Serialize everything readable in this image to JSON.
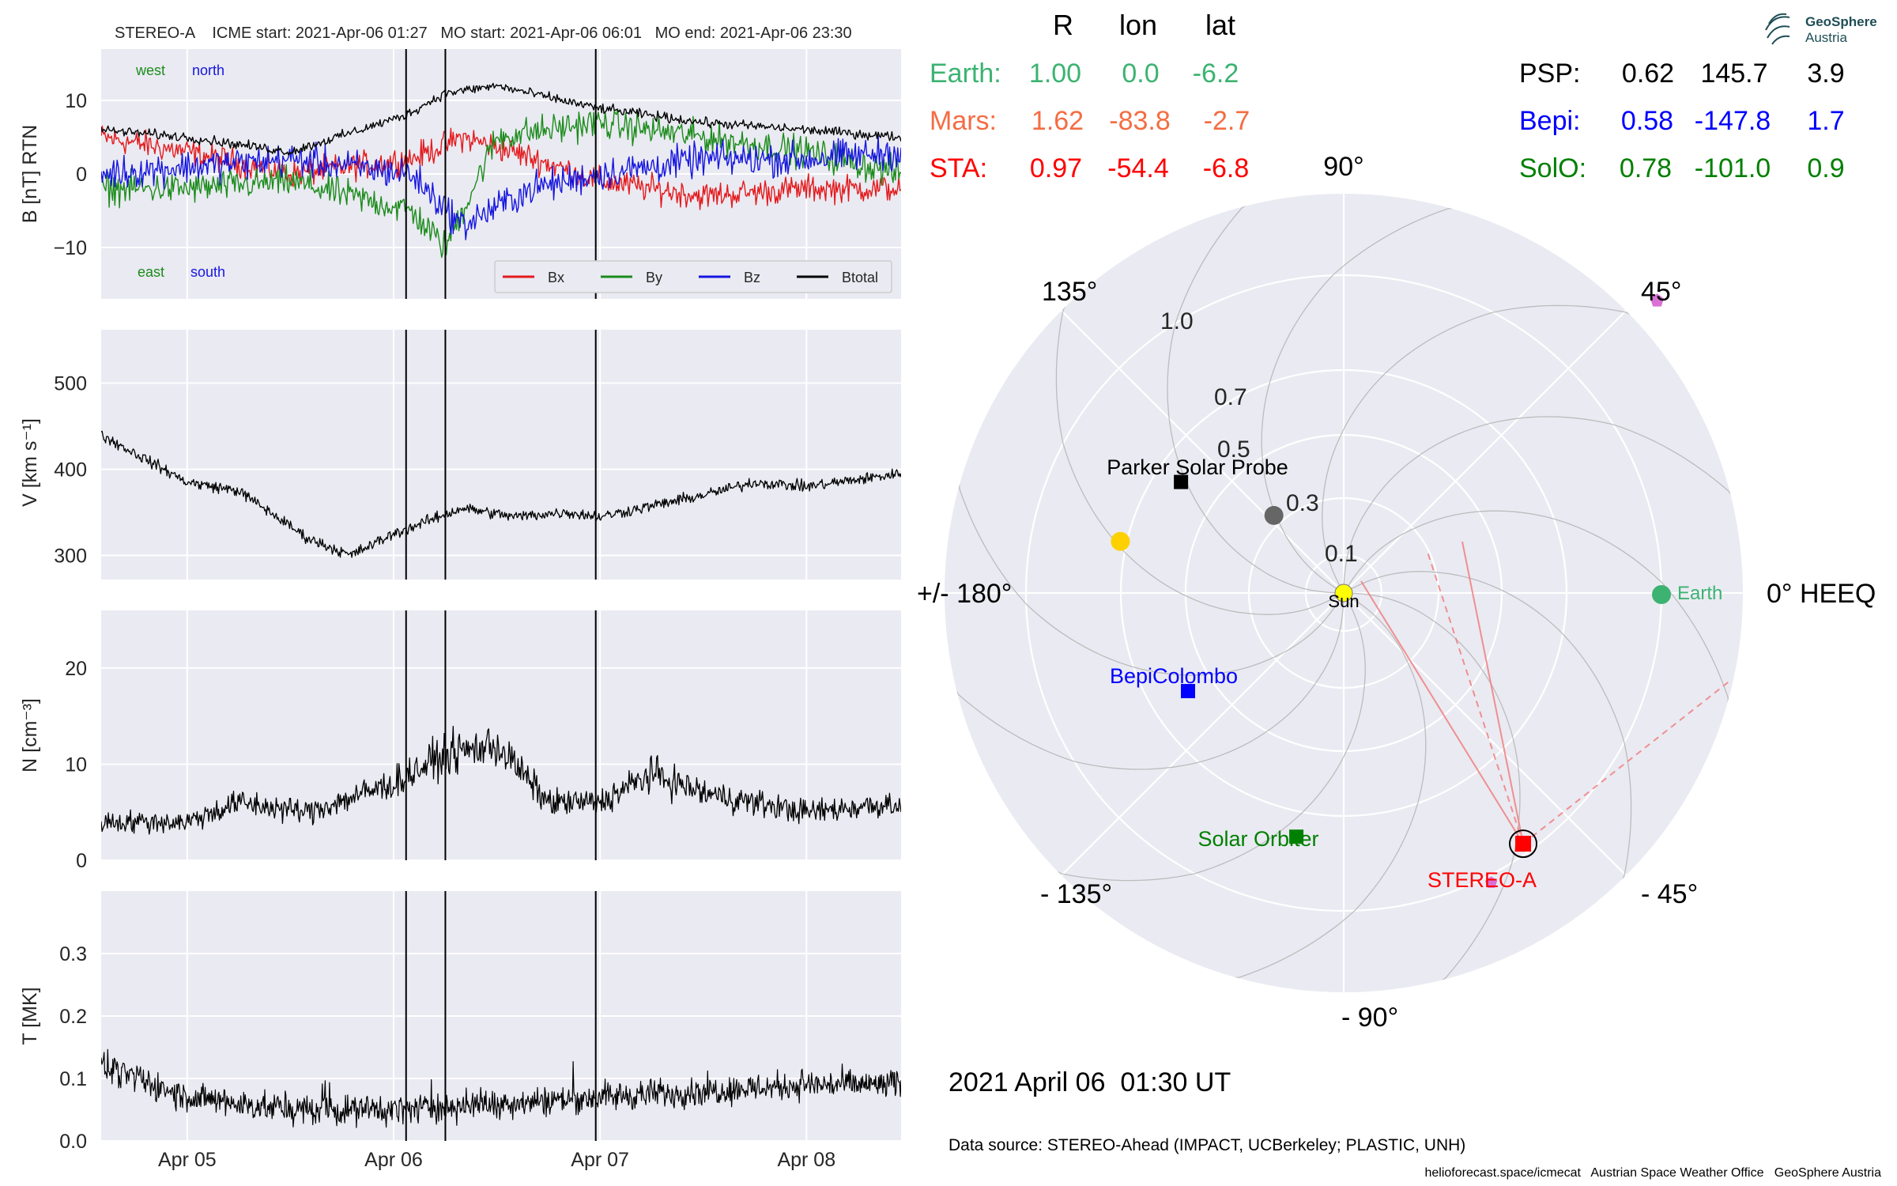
{
  "header": {
    "title": "STEREO-A    ICME start: 2021-Apr-06 01:27   MO start: 2021-Apr-06 06:01   MO end: 2021-Apr-06 23:30"
  },
  "panel_b": {
    "ylabel": "B [nT] RTN",
    "dir_west": "west",
    "dir_north": "north",
    "dir_east": "east",
    "dir_south": "south",
    "legend": [
      "Bx",
      "By",
      "Bz",
      "Btotal"
    ]
  },
  "panel_v": {
    "ylabel": "V [km s⁻¹]"
  },
  "panel_n": {
    "ylabel": "N [cm⁻³]"
  },
  "panel_t": {
    "ylabel": "T [MK]"
  },
  "colors": {
    "bx": "#e41a1c",
    "by": "#1b8c1b",
    "bz": "#1515e0",
    "btot": "#000000",
    "earth": "#3cb371",
    "mars": "#f46d43",
    "sta": "#ff0000",
    "psp": "#000000",
    "bepi": "#0000ff",
    "solo": "#008000",
    "mercury": "#666666",
    "venus": "#ffd000"
  },
  "chart_data": [
    {
      "type": "line",
      "title": "B [nT] RTN",
      "ylabel": "B [nT] RTN",
      "ylim": [
        -17,
        17
      ],
      "yticks": [
        "10",
        "0",
        "−10"
      ],
      "xlim": [
        "2021-04-04 14:00",
        "2021-04-08 11:00"
      ],
      "xticks": [
        "Apr 05",
        "Apr 06",
        "Apr 07",
        "Apr 08"
      ],
      "series": [
        {
          "name": "Bx",
          "points": [
            [
              "2021-04-04 14:00",
              5
            ],
            [
              "2021-04-05 00:00",
              3
            ],
            [
              "2021-04-05 12:00",
              0
            ],
            [
              "2021-04-06 02:00",
              2
            ],
            [
              "2021-04-06 08:00",
              5
            ],
            [
              "2021-04-06 14:00",
              3
            ],
            [
              "2021-04-07 00:00",
              -1
            ],
            [
              "2021-04-07 12:00",
              -3
            ],
            [
              "2021-04-08 00:00",
              -2
            ],
            [
              "2021-04-08 11:00",
              -2
            ]
          ]
        },
        {
          "name": "By",
          "points": [
            [
              "2021-04-04 14:00",
              -2
            ],
            [
              "2021-04-05 00:00",
              -2
            ],
            [
              "2021-04-05 12:00",
              -1
            ],
            [
              "2021-04-06 02:00",
              -5
            ],
            [
              "2021-04-06 06:00",
              -10
            ],
            [
              "2021-04-06 12:00",
              5
            ],
            [
              "2021-04-06 23:30",
              7
            ],
            [
              "2021-04-07 12:00",
              5
            ],
            [
              "2021-04-08 00:00",
              3
            ],
            [
              "2021-04-08 11:00",
              0
            ]
          ]
        },
        {
          "name": "Bz",
          "points": [
            [
              "2021-04-04 14:00",
              0
            ],
            [
              "2021-04-05 00:00",
              1
            ],
            [
              "2021-04-05 12:00",
              2
            ],
            [
              "2021-04-06 02:00",
              0
            ],
            [
              "2021-04-06 08:00",
              -7
            ],
            [
              "2021-04-06 16:00",
              -2
            ],
            [
              "2021-04-07 00:00",
              0
            ],
            [
              "2021-04-07 12:00",
              2
            ],
            [
              "2021-04-08 00:00",
              2
            ],
            [
              "2021-04-08 11:00",
              3
            ]
          ]
        },
        {
          "name": "Btotal",
          "points": [
            [
              "2021-04-04 14:00",
              6
            ],
            [
              "2021-04-05 00:00",
              5
            ],
            [
              "2021-04-05 12:00",
              3
            ],
            [
              "2021-04-06 01:27",
              8
            ],
            [
              "2021-04-06 06:00",
              11
            ],
            [
              "2021-04-06 12:00",
              12
            ],
            [
              "2021-04-06 23:30",
              9
            ],
            [
              "2021-04-07 12:00",
              7
            ],
            [
              "2021-04-08 00:00",
              6
            ],
            [
              "2021-04-08 11:00",
              5
            ]
          ]
        }
      ],
      "vlines": [
        "2021-04-06 01:27",
        "2021-04-06 06:01",
        "2021-04-06 23:30"
      ]
    },
    {
      "type": "line",
      "ylabel": "V [km s⁻¹]",
      "ylim": [
        272,
        562
      ],
      "yticks": [
        "500",
        "400",
        "300"
      ],
      "xlim": [
        "2021-04-04 14:00",
        "2021-04-08 11:00"
      ],
      "series": [
        {
          "points": [
            [
              "2021-04-04 14:00",
              440
            ],
            [
              "2021-04-05 00:00",
              385
            ],
            [
              "2021-04-05 06:00",
              375
            ],
            [
              "2021-04-05 14:00",
              320
            ],
            [
              "2021-04-05 19:00",
              300
            ],
            [
              "2021-04-06 00:00",
              325
            ],
            [
              "2021-04-06 08:00",
              355
            ],
            [
              "2021-04-06 14:00",
              345
            ],
            [
              "2021-04-06 20:00",
              350
            ],
            [
              "2021-04-07 00:00",
              345
            ],
            [
              "2021-04-07 12:00",
              370
            ],
            [
              "2021-04-07 18:00",
              385
            ],
            [
              "2021-04-08 00:00",
              380
            ],
            [
              "2021-04-08 11:00",
              395
            ]
          ]
        }
      ]
    },
    {
      "type": "line",
      "ylabel": "N [cm⁻³]",
      "ylim": [
        0,
        26
      ],
      "yticks": [
        "20",
        "10",
        "0"
      ],
      "xlim": [
        "2021-04-04 14:00",
        "2021-04-08 11:00"
      ],
      "series": [
        {
          "points": [
            [
              "2021-04-04 14:00",
              4
            ],
            [
              "2021-04-05 00:00",
              4
            ],
            [
              "2021-04-05 06:00",
              6
            ],
            [
              "2021-04-05 14:00",
              5
            ],
            [
              "2021-04-06 00:00",
              8
            ],
            [
              "2021-04-06 06:00",
              11
            ],
            [
              "2021-04-06 12:00",
              12
            ],
            [
              "2021-04-06 18:00",
              6
            ],
            [
              "2021-04-07 00:00",
              6
            ],
            [
              "2021-04-07 06:00",
              9
            ],
            [
              "2021-04-07 12:00",
              7
            ],
            [
              "2021-04-08 00:00",
              5
            ],
            [
              "2021-04-08 11:00",
              6
            ]
          ]
        }
      ]
    },
    {
      "type": "line",
      "ylabel": "T [MK]",
      "ylim": [
        0,
        0.4
      ],
      "yticks": [
        "0.3",
        "0.2",
        "0.1",
        "0.0"
      ],
      "xlim": [
        "2021-04-04 14:00",
        "2021-04-08 11:00"
      ],
      "series": [
        {
          "points": [
            [
              "2021-04-04 14:00",
              0.12
            ],
            [
              "2021-04-05 00:00",
              0.07
            ],
            [
              "2021-04-05 12:00",
              0.05
            ],
            [
              "2021-04-06 00:00",
              0.05
            ],
            [
              "2021-04-06 12:00",
              0.06
            ],
            [
              "2021-04-07 00:00",
              0.07
            ],
            [
              "2021-04-07 12:00",
              0.08
            ],
            [
              "2021-04-08 00:00",
              0.09
            ],
            [
              "2021-04-08 11:00",
              0.09
            ]
          ]
        }
      ]
    },
    {
      "type": "scatter",
      "subtype": "polar",
      "table_header": [
        "R",
        "lon",
        "lat"
      ],
      "table_rows": [
        {
          "name": "Earth:",
          "R": "1.00",
          "lon": "0.0",
          "lat": "-6.2"
        },
        {
          "name": "Mars:",
          "R": "1.62",
          "lon": "-83.8",
          "lat": "-2.7"
        },
        {
          "name": "STA:",
          "R": "0.97",
          "lon": "-54.4",
          "lat": "-6.8"
        },
        {
          "name": "PSP:",
          "R": "0.62",
          "lon": "145.7",
          "lat": "3.9"
        },
        {
          "name": "Bepi:",
          "R": "0.58",
          "lon": "-147.8",
          "lat": "1.7"
        },
        {
          "name": "SolO:",
          "R": "0.78",
          "lon": "-101.0",
          "lat": "0.9"
        }
      ],
      "radial_ticks": [
        "0.1",
        "0.3",
        "0.5",
        "0.7",
        "1.0"
      ],
      "angle_labels": [
        "0° HEEQ",
        "45°",
        "90°",
        "135°",
        "+/- 180°",
        "- 135°",
        "- 90°",
        "- 45°"
      ],
      "objects": [
        {
          "label": "Sun",
          "r": 0.0,
          "lon": 0.0
        },
        {
          "label": "Earth",
          "r": 1.0,
          "lon": 0.0
        },
        {
          "label": "STEREO-A",
          "r": 0.97,
          "lon": -54.4
        },
        {
          "label": "Parker Solar Probe",
          "r": 0.62,
          "lon": 145.7
        },
        {
          "label": "BepiColombo",
          "r": 0.58,
          "lon": -147.8
        },
        {
          "label": "Solar Orbiter",
          "r": 0.78,
          "lon": -101.0
        },
        {
          "label": "",
          "r": 0.33,
          "lon": 132
        },
        {
          "label": "",
          "r": 0.72,
          "lon": 167
        },
        {
          "label": "",
          "r": 1.57,
          "lon": 43
        },
        {
          "label": "",
          "r": 0.98,
          "lon": -57
        }
      ],
      "date": "2021 April 06  01:30 UT",
      "source": "Data source: STEREO-Ahead (IMPACT, UCBerkeley; PLASTIC, UNH)"
    }
  ],
  "footer": {
    "credits": "helioforecast.space/icmecat   Austrian Space Weather Office   GeoSphere Austria"
  },
  "logo": {
    "line1": "GeoSphere",
    "line2": "Austria"
  }
}
